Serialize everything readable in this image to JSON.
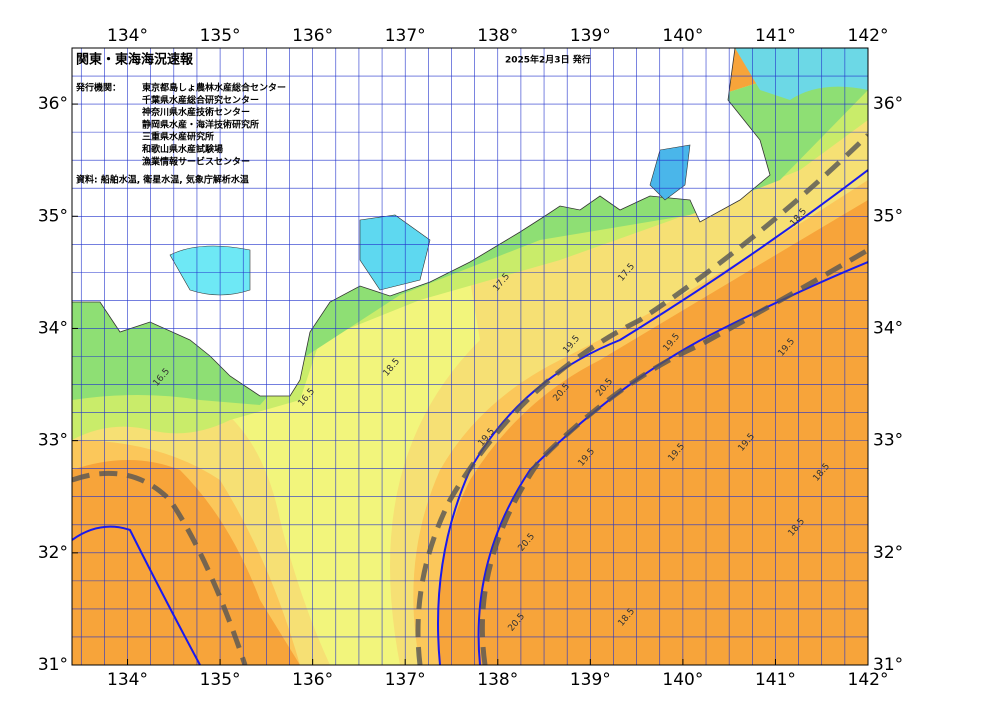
{
  "map": {
    "title": "関東・東海海況速報",
    "date": "2025年2月3日 発行",
    "issuers_label": "発行機関：",
    "issuers": [
      "東京都島しょ農林水産総合センター",
      "千葉県水産総合研究センター",
      "神奈川県水産技術センター",
      "静岡県水産・海洋技術研究所",
      "三重県水産研究所",
      "和歌山県水産試験場",
      "漁業情報サービスセンター"
    ],
    "source": "資料: 船舶水温, 衛星水温, 気象庁解析水温",
    "lonlim": [
      133.4,
      142
    ],
    "latlim": [
      31,
      36.5
    ],
    "lon_ticks": [
      {
        "value": 134,
        "label": "134°"
      },
      {
        "value": 135,
        "label": "135°"
      },
      {
        "value": 136,
        "label": "136°"
      },
      {
        "value": 137,
        "label": "137°"
      },
      {
        "value": 138,
        "label": "138°"
      },
      {
        "value": 139,
        "label": "139°"
      },
      {
        "value": 140,
        "label": "140°"
      },
      {
        "value": 141,
        "label": "141°"
      },
      {
        "value": 142,
        "label": "142°"
      }
    ],
    "lat_ticks": [
      {
        "value": 31,
        "label": "31°"
      },
      {
        "value": 32,
        "label": "32°"
      },
      {
        "value": 33,
        "label": "33°"
      },
      {
        "value": 34,
        "label": "34°"
      },
      {
        "value": 35,
        "label": "35°"
      },
      {
        "value": 36,
        "label": "36°"
      }
    ],
    "contour_labels": [
      16.5,
      17.5,
      18.5,
      19.5,
      20.5,
      20.5,
      19.5,
      18.5,
      17.5,
      16.5,
      19.5,
      20.5,
      19.5,
      18.5,
      19.5,
      18.5,
      19.5,
      20.5,
      19.5,
      18.5
    ]
  }
}
